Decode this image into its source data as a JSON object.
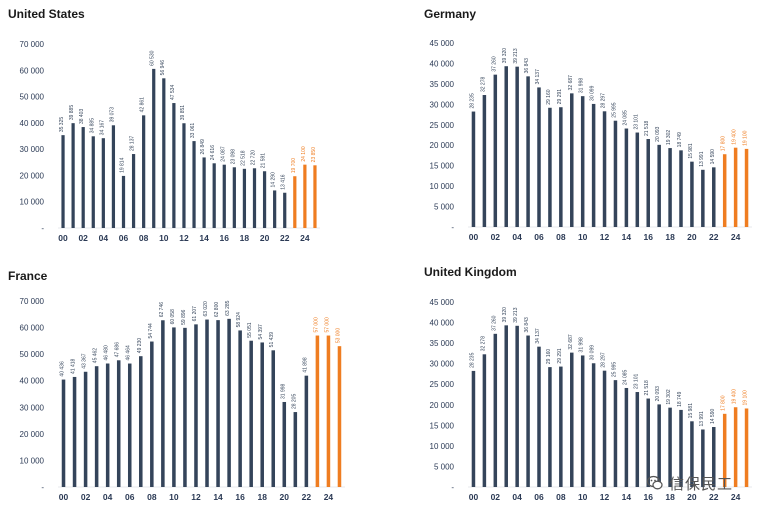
{
  "colors": {
    "actual": "#34445a",
    "forecast": "#ef7d21",
    "axis": "#2b3a55"
  },
  "chart_data": [
    {
      "type": "bar",
      "title": "United States",
      "categories": [
        "00",
        "01",
        "02",
        "03",
        "04",
        "05",
        "06",
        "07",
        "08",
        "09",
        "10",
        "11",
        "12",
        "13",
        "14",
        "15",
        "16",
        "17",
        "18",
        "19",
        "20",
        "21",
        "22",
        "23",
        "24",
        "25"
      ],
      "x_tick_labels": [
        "00",
        "02",
        "04",
        "06",
        "08",
        "10",
        "12",
        "14",
        "16",
        "18",
        "20",
        "22",
        "24"
      ],
      "values": [
        35325,
        39885,
        38403,
        34885,
        34167,
        39073,
        19814,
        28137,
        42861,
        60530,
        56946,
        47534,
        39851,
        33061,
        26849,
        24616,
        24087,
        23098,
        22518,
        22720,
        21591,
        14290,
        13416,
        19700,
        24100,
        23850
      ],
      "value_labels": [
        "35 325",
        "39 885",
        "38 403",
        "34 885",
        "34 167",
        "39 073",
        "19 814",
        "28 137",
        "42 861",
        "60 530",
        "56 946",
        "47 534",
        "39 851",
        "33 061",
        "26 849",
        "24 616",
        "24 087",
        "23 098",
        "22 518",
        "22 720",
        "21 591",
        "14 290",
        "13 416",
        "19 700",
        "24 100",
        "23 850"
      ],
      "forecast_from_index": 23,
      "ylim": [
        0,
        70000
      ],
      "y_ticks": [
        0,
        10000,
        20000,
        30000,
        40000,
        50000,
        60000,
        70000
      ],
      "y_tick_labels": [
        "-",
        "10 000",
        "20 000",
        "30 000",
        "40 000",
        "50 000",
        "60 000",
        "70 000"
      ],
      "grid": false,
      "legend": "none"
    },
    {
      "type": "bar",
      "title": "Germany",
      "categories": [
        "00",
        "01",
        "02",
        "03",
        "04",
        "05",
        "06",
        "07",
        "08",
        "09",
        "10",
        "11",
        "12",
        "13",
        "14",
        "15",
        "16",
        "17",
        "18",
        "19",
        "20",
        "21",
        "22",
        "23",
        "24",
        "25"
      ],
      "x_tick_labels": [
        "00",
        "02",
        "04",
        "06",
        "08",
        "10",
        "12",
        "14",
        "16",
        "18",
        "20",
        "22",
        "24"
      ],
      "values": [
        28235,
        32278,
        37260,
        39320,
        39213,
        36843,
        34137,
        29160,
        29291,
        32687,
        31998,
        30099,
        28297,
        25995,
        24085,
        23101,
        21518,
        20093,
        19302,
        18749,
        15981,
        13991,
        14590,
        17800,
        19400,
        19100
      ],
      "value_labels": [
        "28 235",
        "32 278",
        "37 260",
        "39 320",
        "39 213",
        "36 843",
        "34 137",
        "29 160",
        "29 291",
        "32 687",
        "31 998",
        "30 099",
        "28 297",
        "25 995",
        "24 085",
        "23 101",
        "21 518",
        "20 093",
        "19 302",
        "18 749",
        "15 981",
        "13 991",
        "14 590",
        "17 800",
        "19 400",
        "19 100"
      ],
      "forecast_from_index": 23,
      "ylim": [
        0,
        45000
      ],
      "y_ticks": [
        0,
        5000,
        10000,
        15000,
        20000,
        25000,
        30000,
        35000,
        40000,
        45000
      ],
      "y_tick_labels": [
        "-",
        "5 000",
        "10 000",
        "15 000",
        "20 000",
        "25 000",
        "30 000",
        "35 000",
        "40 000",
        "45 000"
      ],
      "grid": false,
      "legend": "none"
    },
    {
      "type": "bar",
      "title": "France",
      "categories": [
        "00",
        "01",
        "02",
        "03",
        "04",
        "05",
        "06",
        "07",
        "08",
        "09",
        "10",
        "11",
        "12",
        "13",
        "14",
        "15",
        "16",
        "17",
        "18",
        "19",
        "20",
        "21",
        "22",
        "23",
        "24",
        "25"
      ],
      "x_tick_labels": [
        "00",
        "02",
        "04",
        "06",
        "08",
        "10",
        "12",
        "14",
        "16",
        "18",
        "20",
        "22",
        "24"
      ],
      "values": [
        40436,
        41418,
        43367,
        45462,
        46480,
        47686,
        46464,
        49230,
        54744,
        62746,
        60058,
        59896,
        61207,
        63020,
        62800,
        63285,
        58924,
        55051,
        54397,
        51439,
        31998,
        28205,
        41898,
        57000,
        57000,
        53000
      ],
      "value_labels": [
        "40 436",
        "41 418",
        "43 367",
        "45 462",
        "46 480",
        "47 686",
        "46 464",
        "49 230",
        "54 744",
        "62 746",
        "60 058",
        "59 896",
        "61 207",
        "63 020",
        "62 800",
        "63 285",
        "58 924",
        "55 051",
        "54 397",
        "51 439",
        "31 998",
        "28 205",
        "41 898",
        "57 000",
        "57 000",
        "53 000"
      ],
      "forecast_from_index": 23,
      "ylim": [
        0,
        70000
      ],
      "y_ticks": [
        0,
        10000,
        20000,
        30000,
        40000,
        50000,
        60000,
        70000
      ],
      "y_tick_labels": [
        "-",
        "10 000",
        "20 000",
        "30 000",
        "40 000",
        "50 000",
        "60 000",
        "70 000"
      ],
      "grid": false,
      "legend": "none"
    },
    {
      "type": "bar",
      "title": "United Kingdom",
      "categories": [
        "00",
        "01",
        "02",
        "03",
        "04",
        "05",
        "06",
        "07",
        "08",
        "09",
        "10",
        "11",
        "12",
        "13",
        "14",
        "15",
        "16",
        "17",
        "18",
        "19",
        "20",
        "21",
        "22",
        "23",
        "24",
        "25"
      ],
      "x_tick_labels": [
        "00",
        "02",
        "04",
        "06",
        "08",
        "10",
        "12",
        "14",
        "16",
        "18",
        "20",
        "22",
        "24"
      ],
      "values": [
        28235,
        32278,
        37260,
        39320,
        39213,
        36843,
        34137,
        29160,
        29291,
        32687,
        31998,
        30099,
        28297,
        25995,
        24085,
        23101,
        21518,
        20093,
        19302,
        18749,
        15981,
        13991,
        14590,
        17800,
        19400,
        19100
      ],
      "value_labels": [
        "28 235",
        "32 278",
        "37 260",
        "39 320",
        "39 213",
        "36 843",
        "34 137",
        "29 160",
        "29 291",
        "32 687",
        "31 998",
        "30 099",
        "28 297",
        "25 995",
        "24 085",
        "23 101",
        "21 518",
        "20 093",
        "19 302",
        "18 749",
        "15 981",
        "13 991",
        "14 590",
        "17 800",
        "19 400",
        "19 100"
      ],
      "forecast_from_index": 23,
      "ylim": [
        0,
        45000
      ],
      "y_ticks": [
        0,
        5000,
        10000,
        15000,
        20000,
        25000,
        30000,
        35000,
        40000,
        45000
      ],
      "y_tick_labels": [
        "-",
        "5 000",
        "10 000",
        "15 000",
        "20 000",
        "25 000",
        "30 000",
        "35 000",
        "40 000",
        "45 000"
      ],
      "grid": false,
      "legend": "none"
    }
  ],
  "watermark": {
    "text": "信保民工",
    "icon": "wechat-icon"
  }
}
